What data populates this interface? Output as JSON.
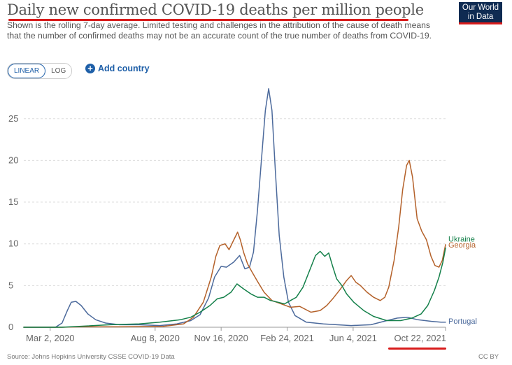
{
  "header": {
    "title": "Daily new confirmed COVID-19 deaths per million people",
    "subtitle": "Shown is the rolling 7-day average. Limited testing and challenges in the attribution of the cause of death means that the number of confirmed deaths may not be an accurate count of the true number of deaths from COVID-19.",
    "logo_line1": "Our World",
    "logo_line2": "in Data"
  },
  "controls": {
    "linear_label": "LINEAR",
    "log_label": "LOG",
    "add_country_label": "Add country"
  },
  "footer": {
    "source": "Source: Johns Hopkins University CSSE COVID-19 Data",
    "license": "CC BY"
  },
  "colors": {
    "Portugal": "#4c6a9c",
    "Georgia": "#b4612a",
    "Ukraine": "#14804a",
    "annotation_red": "#d81b1b",
    "grid": "#dddddd"
  },
  "chart_data": {
    "type": "line",
    "title": "Daily new confirmed COVID-19 deaths per million people",
    "xlabel": "",
    "ylabel": "",
    "ylim": [
      0,
      28.5
    ],
    "yticks": [
      0,
      5,
      10,
      15,
      20,
      25
    ],
    "xlim": [
      "2020-01-22",
      "2021-10-22"
    ],
    "xticks": [
      "2020-03-02",
      "2020-08-08",
      "2020-11-16",
      "2021-02-24",
      "2021-06-04",
      "2021-10-22"
    ],
    "xtick_labels": [
      "Mar 2, 2020",
      "Aug 8, 2020",
      "Nov 16, 2020",
      "Feb 24, 2021",
      "Jun 4, 2021",
      "Oct 22, 2021"
    ],
    "grid": "horizontal dashed",
    "legend": "line-end labels",
    "series": [
      {
        "name": "Portugal",
        "points": [
          [
            "2020-01-22",
            0
          ],
          [
            "2020-03-10",
            0
          ],
          [
            "2020-03-20",
            0.5
          ],
          [
            "2020-03-28",
            2.0
          ],
          [
            "2020-04-03",
            3.0
          ],
          [
            "2020-04-10",
            3.1
          ],
          [
            "2020-04-18",
            2.6
          ],
          [
            "2020-04-28",
            1.6
          ],
          [
            "2020-05-10",
            0.9
          ],
          [
            "2020-05-25",
            0.5
          ],
          [
            "2020-06-15",
            0.3
          ],
          [
            "2020-07-15",
            0.3
          ],
          [
            "2020-08-15",
            0.2
          ],
          [
            "2020-09-10",
            0.4
          ],
          [
            "2020-10-01",
            0.8
          ],
          [
            "2020-10-15",
            1.5
          ],
          [
            "2020-10-28",
            3.5
          ],
          [
            "2020-11-06",
            6.0
          ],
          [
            "2020-11-16",
            7.3
          ],
          [
            "2020-11-24",
            7.2
          ],
          [
            "2020-12-05",
            7.8
          ],
          [
            "2020-12-14",
            8.6
          ],
          [
            "2020-12-22",
            7.0
          ],
          [
            "2020-12-29",
            7.2
          ],
          [
            "2021-01-04",
            9.0
          ],
          [
            "2021-01-10",
            14.0
          ],
          [
            "2021-01-16",
            20.0
          ],
          [
            "2021-01-22",
            26.0
          ],
          [
            "2021-01-27",
            28.6
          ],
          [
            "2021-02-01",
            26.0
          ],
          [
            "2021-02-06",
            19.0
          ],
          [
            "2021-02-12",
            11.0
          ],
          [
            "2021-02-19",
            6.0
          ],
          [
            "2021-02-26",
            3.0
          ],
          [
            "2021-03-08",
            1.4
          ],
          [
            "2021-03-25",
            0.6
          ],
          [
            "2021-04-20",
            0.4
          ],
          [
            "2021-06-01",
            0.2
          ],
          [
            "2021-07-01",
            0.3
          ],
          [
            "2021-07-25",
            0.8
          ],
          [
            "2021-08-10",
            1.1
          ],
          [
            "2021-08-25",
            1.2
          ],
          [
            "2021-09-10",
            0.9
          ],
          [
            "2021-10-01",
            0.7
          ],
          [
            "2021-10-15",
            0.6
          ],
          [
            "2021-10-22",
            0.6
          ]
        ]
      },
      {
        "name": "Georgia",
        "points": [
          [
            "2020-01-22",
            0
          ],
          [
            "2020-03-20",
            0
          ],
          [
            "2020-04-15",
            0.05
          ],
          [
            "2020-06-15",
            0.05
          ],
          [
            "2020-08-20",
            0.1
          ],
          [
            "2020-09-20",
            0.4
          ],
          [
            "2020-10-05",
            1.2
          ],
          [
            "2020-10-20",
            3.0
          ],
          [
            "2020-11-01",
            6.0
          ],
          [
            "2020-11-08",
            8.5
          ],
          [
            "2020-11-14",
            9.8
          ],
          [
            "2020-11-22",
            10.0
          ],
          [
            "2020-11-28",
            9.3
          ],
          [
            "2020-12-06",
            10.6
          ],
          [
            "2020-12-11",
            11.4
          ],
          [
            "2020-12-15",
            10.5
          ],
          [
            "2020-12-20",
            9.0
          ],
          [
            "2020-12-26",
            7.6
          ],
          [
            "2021-01-02",
            6.6
          ],
          [
            "2021-01-10",
            5.5
          ],
          [
            "2021-01-20",
            4.2
          ],
          [
            "2021-02-01",
            3.2
          ],
          [
            "2021-02-15",
            2.8
          ],
          [
            "2021-03-01",
            2.4
          ],
          [
            "2021-03-15",
            2.5
          ],
          [
            "2021-04-01",
            1.8
          ],
          [
            "2021-04-15",
            2.0
          ],
          [
            "2021-04-25",
            2.6
          ],
          [
            "2021-05-05",
            3.5
          ],
          [
            "2021-05-15",
            4.5
          ],
          [
            "2021-05-25",
            5.6
          ],
          [
            "2021-06-01",
            6.2
          ],
          [
            "2021-06-08",
            5.4
          ],
          [
            "2021-06-15",
            5.0
          ],
          [
            "2021-06-25",
            4.2
          ],
          [
            "2021-07-05",
            3.6
          ],
          [
            "2021-07-15",
            3.2
          ],
          [
            "2021-07-22",
            3.6
          ],
          [
            "2021-07-28",
            4.8
          ],
          [
            "2021-08-05",
            8.0
          ],
          [
            "2021-08-12",
            12.0
          ],
          [
            "2021-08-18",
            16.5
          ],
          [
            "2021-08-24",
            19.4
          ],
          [
            "2021-08-28",
            20.0
          ],
          [
            "2021-09-02",
            18.0
          ],
          [
            "2021-09-09",
            13.0
          ],
          [
            "2021-09-16",
            11.5
          ],
          [
            "2021-09-23",
            10.5
          ],
          [
            "2021-09-30",
            8.5
          ],
          [
            "2021-10-06",
            7.4
          ],
          [
            "2021-10-12",
            7.2
          ],
          [
            "2021-10-17",
            8.0
          ],
          [
            "2021-10-22",
            9.9
          ]
        ]
      },
      {
        "name": "Ukraine",
        "points": [
          [
            "2020-01-22",
            0
          ],
          [
            "2020-03-20",
            0
          ],
          [
            "2020-04-15",
            0.1
          ],
          [
            "2020-06-01",
            0.3
          ],
          [
            "2020-07-15",
            0.4
          ],
          [
            "2020-08-15",
            0.6
          ],
          [
            "2020-09-15",
            0.9
          ],
          [
            "2020-10-01",
            1.2
          ],
          [
            "2020-10-15",
            1.8
          ],
          [
            "2020-10-30",
            2.6
          ],
          [
            "2020-11-10",
            3.4
          ],
          [
            "2020-11-20",
            3.6
          ],
          [
            "2020-12-01",
            4.2
          ],
          [
            "2020-12-10",
            5.2
          ],
          [
            "2020-12-20",
            4.6
          ],
          [
            "2020-12-31",
            4.0
          ],
          [
            "2021-01-10",
            3.6
          ],
          [
            "2021-01-20",
            3.6
          ],
          [
            "2021-01-30",
            3.2
          ],
          [
            "2021-02-10",
            3.0
          ],
          [
            "2021-02-20",
            2.8
          ],
          [
            "2021-03-01",
            3.2
          ],
          [
            "2021-03-10",
            3.6
          ],
          [
            "2021-03-20",
            4.8
          ],
          [
            "2021-03-30",
            6.8
          ],
          [
            "2021-04-08",
            8.6
          ],
          [
            "2021-04-15",
            9.1
          ],
          [
            "2021-04-22",
            8.5
          ],
          [
            "2021-04-28",
            8.9
          ],
          [
            "2021-05-04",
            7.3
          ],
          [
            "2021-05-10",
            5.8
          ],
          [
            "2021-05-18",
            5.0
          ],
          [
            "2021-05-25",
            4.0
          ],
          [
            "2021-06-05",
            3.0
          ],
          [
            "2021-06-20",
            2.0
          ],
          [
            "2021-07-05",
            1.3
          ],
          [
            "2021-07-25",
            0.8
          ],
          [
            "2021-08-15",
            0.8
          ],
          [
            "2021-09-01",
            1.1
          ],
          [
            "2021-09-15",
            1.6
          ],
          [
            "2021-09-25",
            2.6
          ],
          [
            "2021-10-05",
            4.4
          ],
          [
            "2021-10-12",
            6.0
          ],
          [
            "2021-10-18",
            7.8
          ],
          [
            "2021-10-22",
            9.5
          ]
        ]
      }
    ]
  }
}
